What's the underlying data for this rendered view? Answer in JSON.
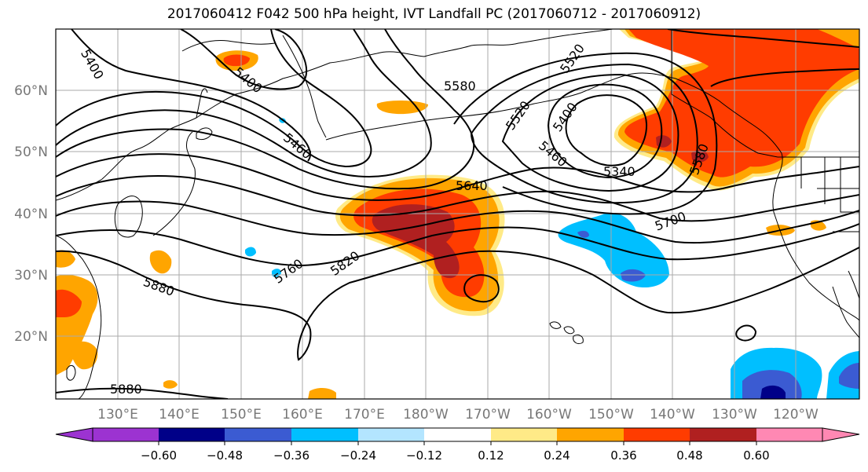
{
  "title": "2017060412 F042 500 hPa height, IVT Landfall PC (2017060712 - 2017060912)",
  "lat_labels": [
    "60°N",
    "50°N",
    "40°N",
    "30°N",
    "20°N"
  ],
  "lon_labels": [
    "130°E",
    "140°E",
    "150°E",
    "160°E",
    "170°E",
    "180°W",
    "170°W",
    "160°W",
    "150°W",
    "140°W",
    "130°W",
    "120°W"
  ],
  "contour_labels": [
    {
      "id": "lbl-5400-a",
      "text": "5400"
    },
    {
      "id": "lbl-5400-b",
      "text": "5400"
    },
    {
      "id": "lbl-5460-a",
      "text": "5460"
    },
    {
      "id": "lbl-5580-a",
      "text": "5580"
    },
    {
      "id": "lbl-5520-a",
      "text": "5520"
    },
    {
      "id": "lbl-5400-c",
      "text": "5400"
    },
    {
      "id": "lbl-5520-b",
      "text": "5520"
    },
    {
      "id": "lbl-5460-b",
      "text": "5460"
    },
    {
      "id": "lbl-5340",
      "text": "5340"
    },
    {
      "id": "lbl-5580-b",
      "text": "5580"
    },
    {
      "id": "lbl-5640",
      "text": "5640"
    },
    {
      "id": "lbl-5700",
      "text": "5700"
    },
    {
      "id": "lbl-5760",
      "text": "5760"
    },
    {
      "id": "lbl-5820",
      "text": "5820"
    },
    {
      "id": "lbl-5880-a",
      "text": "5880"
    },
    {
      "id": "lbl-5880-b",
      "text": "5880"
    }
  ],
  "colorbar": {
    "colors": [
      "#9c33d1",
      "#000088",
      "#3b5bd2",
      "#00bfff",
      "#b3e5ff",
      "#ffffff",
      "#ffea87",
      "#ffa500",
      "#ff3c00",
      "#b02020",
      "#ff88b3"
    ],
    "ticks": [
      "−0.60",
      "−0.48",
      "−0.36",
      "−0.24",
      "−0.12",
      "0.12",
      "0.24",
      "0.36",
      "0.48",
      "0.60"
    ]
  }
}
